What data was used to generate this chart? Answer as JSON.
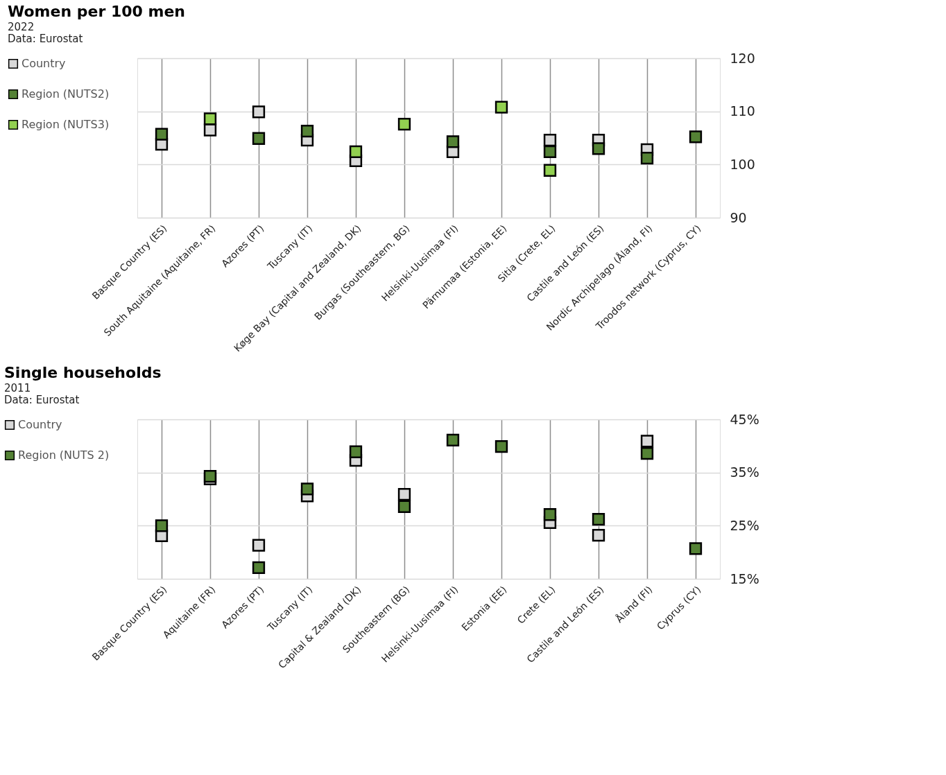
{
  "chart_data": [
    {
      "type": "scatter",
      "title": "Women per 100 men",
      "subtitle": "2022",
      "annotations": [
        "Data: Eurostat"
      ],
      "categories": [
        "Basque Country (ES)",
        "South Aquitaine (Aquitaine, FR)",
        "Azores (PT)",
        "Tuscany (IT)",
        "Køge Bay (Capital and Zealand, DK)",
        "Burgas (Southeastern, BG)",
        "Helsinki-Uusimaa (FI)",
        "Pärnumaa (Estonia, EE)",
        "Sitia (Crete, EL)",
        "Castile and León (ES)",
        "Nordic Archipelago (Åland, FI)",
        "Troodos network (Cyprus, CY)"
      ],
      "series": [
        {
          "name": "Country",
          "color": "#d9d9d9",
          "values": [
            103.8,
            106.5,
            109.9,
            104.6,
            100.7,
            null,
            102.4,
            null,
            104.6,
            104.6,
            102.8,
            null
          ]
        },
        {
          "name": "Region (NUTS2)",
          "color": "#548235",
          "values": [
            105.7,
            null,
            104.9,
            106.3,
            null,
            null,
            104.3,
            null,
            102.4,
            103.0,
            101.2,
            105.2
          ]
        },
        {
          "name": "Region (NUTS3)",
          "color": "#92d050",
          "values": [
            null,
            108.6,
            null,
            null,
            102.4,
            107.6,
            null,
            110.8,
            98.9,
            null,
            null,
            null
          ]
        }
      ],
      "ylim": [
        90,
        120
      ],
      "yticks": [
        90,
        100,
        110,
        120
      ],
      "grid": true,
      "legend": "left",
      "marker": "square"
    },
    {
      "type": "scatter",
      "title": "Single households",
      "subtitle": "2011",
      "annotations": [
        "Data: Eurostat"
      ],
      "categories": [
        "Basque Country (ES)",
        "Aquitaine (FR)",
        "Azores (PT)",
        "Tuscany (IT)",
        "Capital & Zealand (DK)",
        "Southeastern (BG)",
        "Helsinki-Uusimaa (FI)",
        "Estonia (EE)",
        "Crete (EL)",
        "Castile and León (ES)",
        "Åland (FI)",
        "Cyprus (CY)"
      ],
      "series": [
        {
          "name": "Country",
          "color": "#d9d9d9",
          "values": [
            23.1,
            33.8,
            21.3,
            30.6,
            37.3,
            30.9,
            null,
            null,
            25.6,
            23.2,
            40.9,
            null
          ]
        },
        {
          "name": "Region (NUTS 2)",
          "color": "#548235",
          "values": [
            25.0,
            34.3,
            17.1,
            31.9,
            38.9,
            28.6,
            41.1,
            39.9,
            27.1,
            26.2,
            38.6,
            20.7
          ]
        }
      ],
      "ylim": [
        15,
        45
      ],
      "yticks": [
        {
          "value": 15,
          "label": "15%"
        },
        {
          "value": 25,
          "label": "25%"
        },
        {
          "value": 35,
          "label": "35%"
        },
        {
          "value": 45,
          "label": "45%"
        }
      ],
      "grid": true,
      "legend": "left",
      "marker": "square"
    }
  ]
}
